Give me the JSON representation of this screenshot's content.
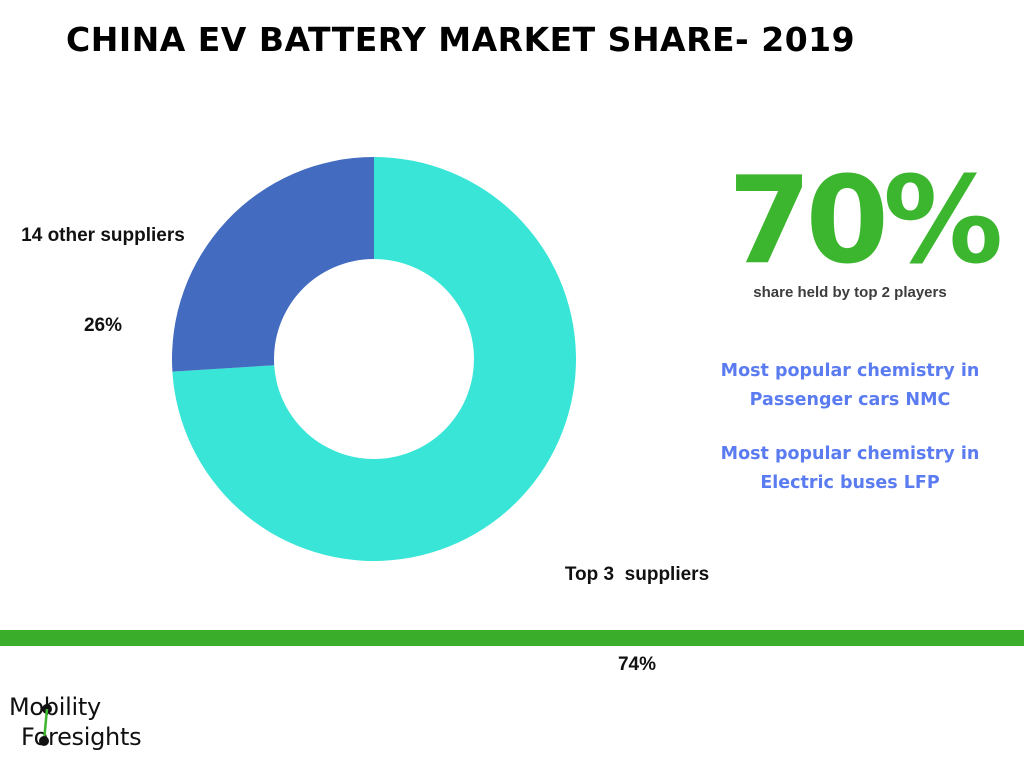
{
  "title": "CHINA EV BATTERY MARKET SHARE- 2019",
  "colors": {
    "accent_green": "#3cb62e",
    "note_blue": "#5b7cf0",
    "slice_top3": "#38e5d6",
    "slice_others": "#436bbf",
    "bar_green": "#3aad2a"
  },
  "chart_data": {
    "type": "pie",
    "subtype": "donut",
    "title": "CHINA EV BATTERY MARKET SHARE- 2019",
    "slices": [
      {
        "label": "Top 3  suppliers",
        "value": 74,
        "value_label": "74%",
        "color": "#38e5d6"
      },
      {
        "label": "14 other suppliers",
        "value": 26,
        "value_label": "26%",
        "color": "#436bbf"
      }
    ],
    "start_angle": "12 o'clock, clockwise",
    "legend": "none (direct labels)"
  },
  "stat": {
    "value": "70%",
    "caption": "share held by top 2 players"
  },
  "notes": [
    {
      "line1": "Most popular chemistry in",
      "line2": "Passenger cars NMC"
    },
    {
      "line1": "Most popular chemistry in",
      "line2": "Electric buses LFP"
    }
  ],
  "logo": {
    "line1": "Mobility",
    "line2": "Foresights"
  }
}
